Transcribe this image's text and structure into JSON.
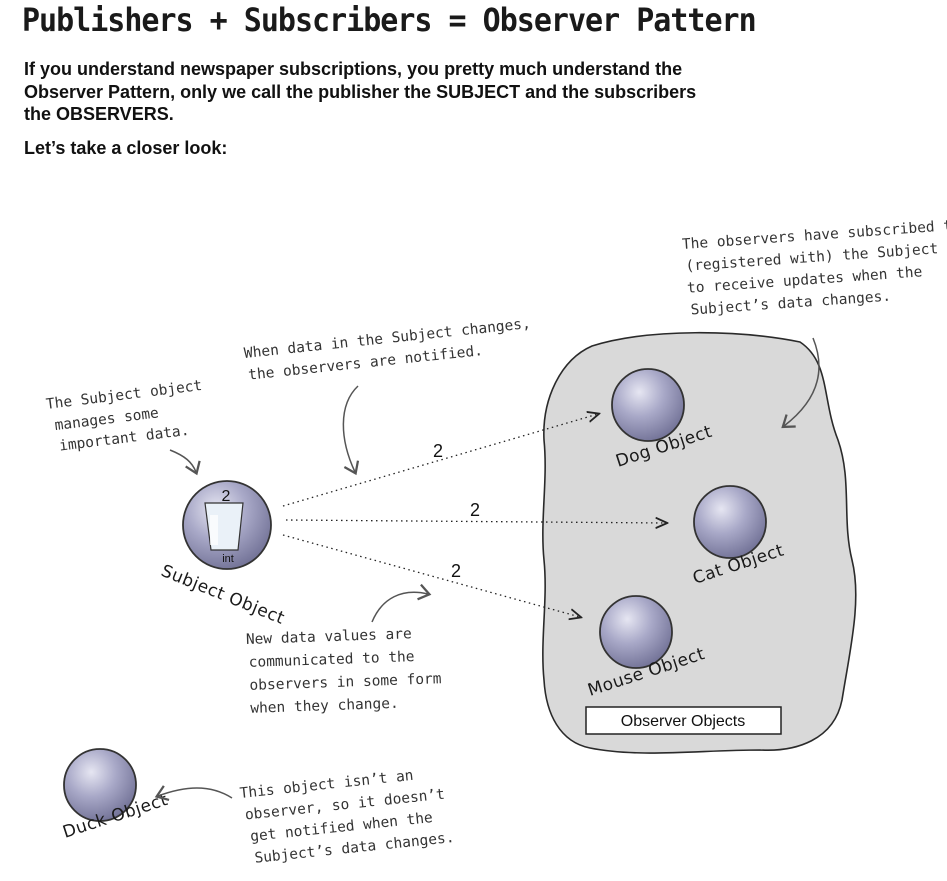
{
  "title": "Publishers + Subscribers = Observer Pattern",
  "intro": "If you understand newspaper subscriptions, you pretty much understand the Observer Pattern, only we call the publisher the SUBJECT and the subscribers the OBSERVERS.",
  "lead": "Let’s take a closer look:",
  "subject": {
    "label": "Subject Object",
    "value": "2",
    "type_label": "int"
  },
  "observers": [
    {
      "label": "Dog Object"
    },
    {
      "label": "Cat Object"
    },
    {
      "label": "Mouse Object"
    }
  ],
  "notifications": [
    "2",
    "2",
    "2"
  ],
  "group_label": "Observer Objects",
  "non_observer": {
    "label": "Duck Object"
  },
  "annotations": {
    "subject_data": [
      "The Subject object",
      "manages some",
      "important data."
    ],
    "notified": [
      "When data in the Subject changes,",
      "the observers are notified."
    ],
    "subscribed": [
      "The observers have subscribed to",
      "(registered with) the Subject",
      "to receive updates when the",
      "Subject’s data changes."
    ],
    "communicated": [
      "New data values are",
      "communicated to the",
      "observers in some form",
      "when they change."
    ],
    "not_observer": [
      "This object isn’t an",
      "observer, so it doesn’t",
      "get notified when the",
      "Subject’s data changes."
    ]
  },
  "colors": {
    "orb": "#8e8eaf",
    "orb_light": "#d8d8ea",
    "cloud": "#d9d9d9",
    "ink": "#1a1a1a"
  }
}
